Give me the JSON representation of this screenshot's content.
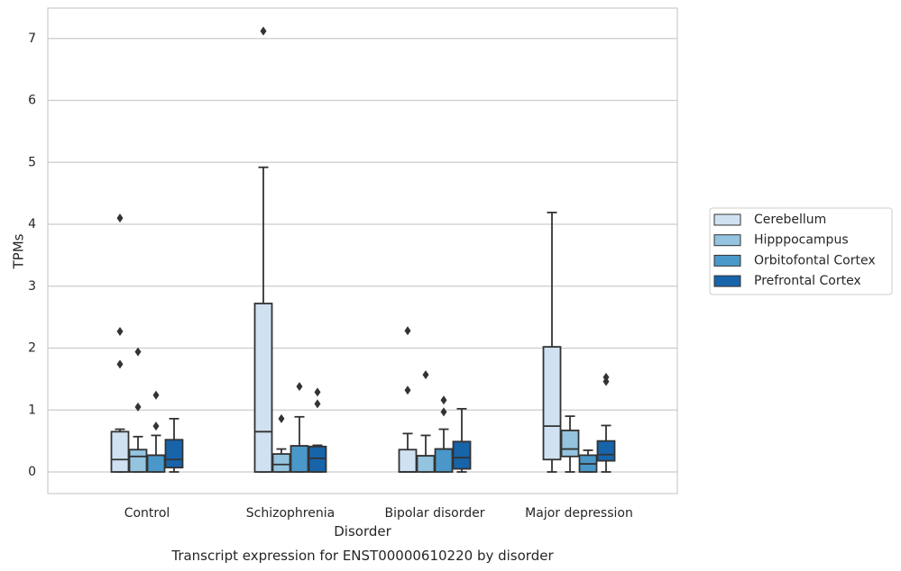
{
  "chart_data": {
    "type": "boxplot",
    "title": "",
    "caption": "Transcript expression for ENST00000610220 by disorder",
    "xlabel": "Disorder",
    "ylabel": "TPMs",
    "ylim": [
      -0.35,
      7.5
    ],
    "yticks": [
      0,
      1,
      2,
      3,
      4,
      5,
      6,
      7
    ],
    "grid": "horizontal",
    "legend_position": "right",
    "categories": [
      "Control",
      "Schizophrenia",
      "Bipolar disorder",
      "Major depression"
    ],
    "series": [
      {
        "name": "Cerebellum",
        "color": "#d0e1f2",
        "boxes": [
          {
            "whisker_low": 0.0,
            "q1": 0.0,
            "median": 0.2,
            "q3": 0.65,
            "whisker_high": 0.69,
            "outliers": [
              1.74,
              2.27,
              4.1
            ]
          },
          {
            "whisker_low": 0.0,
            "q1": 0.0,
            "median": 0.65,
            "q3": 2.72,
            "whisker_high": 4.92,
            "outliers": [
              7.12
            ]
          },
          {
            "whisker_low": 0.0,
            "q1": 0.0,
            "median": 0.0,
            "q3": 0.36,
            "whisker_high": 0.62,
            "outliers": [
              1.32,
              2.28
            ]
          },
          {
            "whisker_low": 0.0,
            "q1": 0.2,
            "median": 0.74,
            "q3": 2.02,
            "whisker_high": 4.19,
            "outliers": []
          }
        ]
      },
      {
        "name": "Hipppocampus",
        "color": "#94c4df",
        "boxes": [
          {
            "whisker_low": 0.0,
            "q1": 0.0,
            "median": 0.25,
            "q3": 0.36,
            "whisker_high": 0.57,
            "outliers": [
              1.05,
              1.94
            ]
          },
          {
            "whisker_low": 0.0,
            "q1": 0.0,
            "median": 0.12,
            "q3": 0.29,
            "whisker_high": 0.37,
            "outliers": [
              0.86
            ]
          },
          {
            "whisker_low": 0.0,
            "q1": 0.0,
            "median": 0.26,
            "q3": 0.26,
            "whisker_high": 0.59,
            "outliers": [
              1.57
            ]
          },
          {
            "whisker_low": 0.0,
            "q1": 0.25,
            "median": 0.37,
            "q3": 0.67,
            "whisker_high": 0.9,
            "outliers": []
          }
        ]
      },
      {
        "name": "Orbitofontal Cortex",
        "color": "#4a98c9",
        "boxes": [
          {
            "whisker_low": 0.0,
            "q1": 0.0,
            "median": 0.27,
            "q3": 0.27,
            "whisker_high": 0.59,
            "outliers": [
              0.74,
              1.24
            ]
          },
          {
            "whisker_low": 0.0,
            "q1": 0.0,
            "median": 0.42,
            "q3": 0.42,
            "whisker_high": 0.89,
            "outliers": [
              1.38
            ]
          },
          {
            "whisker_low": 0.0,
            "q1": 0.0,
            "median": 0.37,
            "q3": 0.37,
            "whisker_high": 0.69,
            "outliers": [
              0.97,
              1.16
            ]
          },
          {
            "whisker_low": 0.0,
            "q1": 0.0,
            "median": 0.13,
            "q3": 0.27,
            "whisker_high": 0.35,
            "outliers": []
          }
        ]
      },
      {
        "name": "Prefrontal Cortex",
        "color": "#1764ab",
        "boxes": [
          {
            "whisker_low": 0.0,
            "q1": 0.07,
            "median": 0.2,
            "q3": 0.52,
            "whisker_high": 0.86,
            "outliers": []
          },
          {
            "whisker_low": 0.0,
            "q1": 0.0,
            "median": 0.22,
            "q3": 0.41,
            "whisker_high": 0.43,
            "outliers": [
              1.1,
              1.29
            ]
          },
          {
            "whisker_low": 0.0,
            "q1": 0.05,
            "median": 0.23,
            "q3": 0.49,
            "whisker_high": 1.02,
            "outliers": []
          },
          {
            "whisker_low": 0.0,
            "q1": 0.18,
            "median": 0.28,
            "q3": 0.5,
            "whisker_high": 0.75,
            "outliers": [
              1.46,
              1.53
            ]
          }
        ]
      }
    ]
  }
}
